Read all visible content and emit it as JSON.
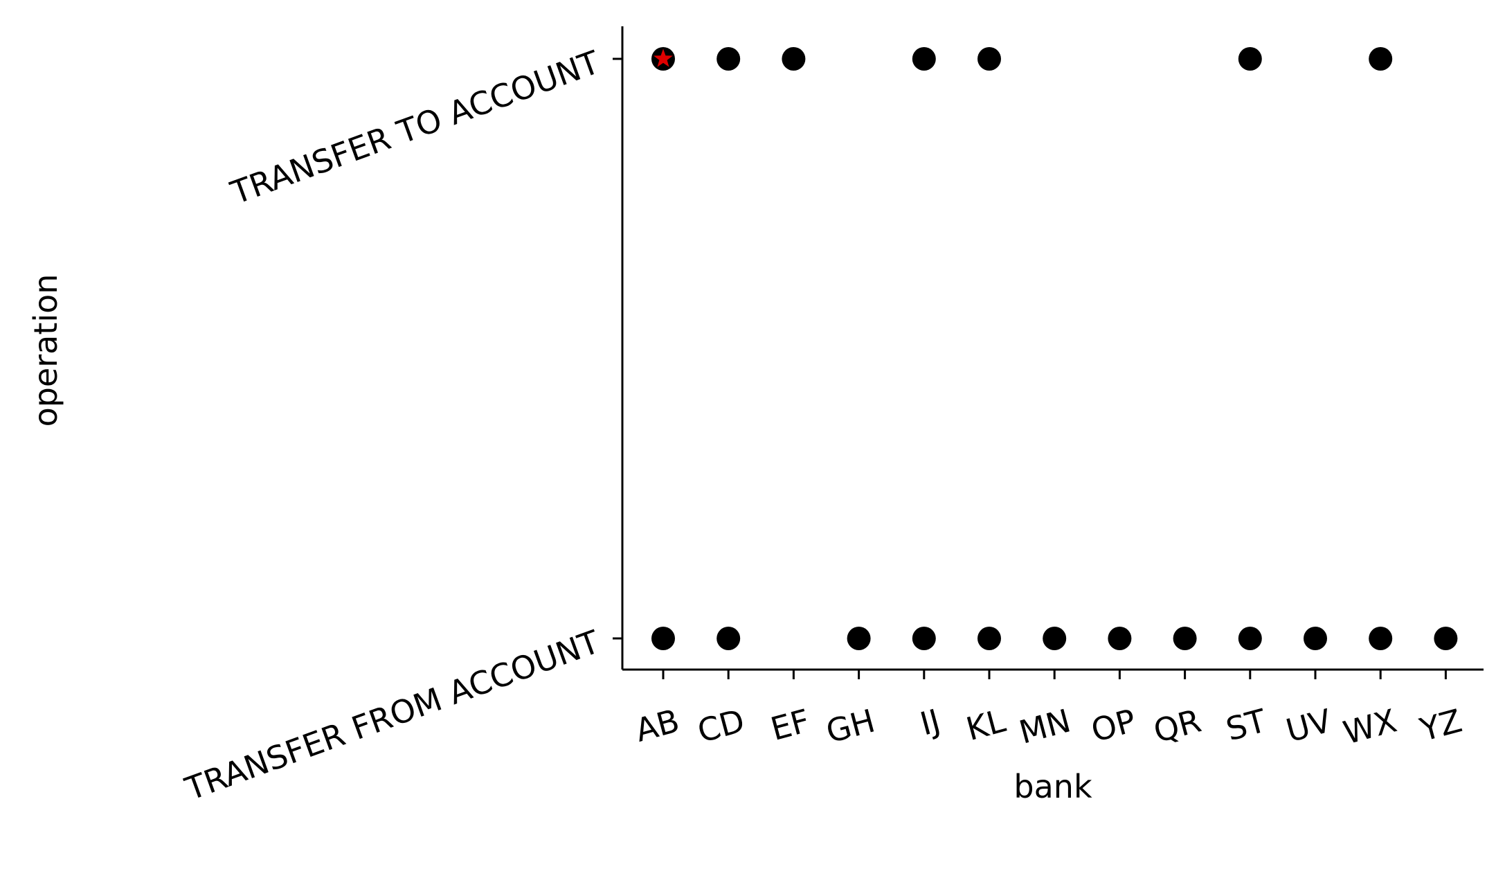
{
  "chart_data": {
    "type": "scatter",
    "xlabel": "bank",
    "ylabel": "operation",
    "categories": [
      "AB",
      "CD",
      "EF",
      "GH",
      "IJ",
      "KL",
      "MN",
      "OP",
      "QR",
      "ST",
      "UV",
      "WX",
      "YZ"
    ],
    "y_categories": [
      "TRANSFER FROM ACCOUNT",
      "TRANSFER TO ACCOUNT"
    ],
    "series": [
      {
        "marker": "circle",
        "color": "#000000",
        "points": [
          {
            "x": "AB",
            "y": "TRANSFER TO ACCOUNT"
          },
          {
            "x": "CD",
            "y": "TRANSFER TO ACCOUNT"
          },
          {
            "x": "EF",
            "y": "TRANSFER TO ACCOUNT"
          },
          {
            "x": "IJ",
            "y": "TRANSFER TO ACCOUNT"
          },
          {
            "x": "KL",
            "y": "TRANSFER TO ACCOUNT"
          },
          {
            "x": "ST",
            "y": "TRANSFER TO ACCOUNT"
          },
          {
            "x": "WX",
            "y": "TRANSFER TO ACCOUNT"
          },
          {
            "x": "AB",
            "y": "TRANSFER FROM ACCOUNT"
          },
          {
            "x": "CD",
            "y": "TRANSFER FROM ACCOUNT"
          },
          {
            "x": "GH",
            "y": "TRANSFER FROM ACCOUNT"
          },
          {
            "x": "IJ",
            "y": "TRANSFER FROM ACCOUNT"
          },
          {
            "x": "KL",
            "y": "TRANSFER FROM ACCOUNT"
          },
          {
            "x": "MN",
            "y": "TRANSFER FROM ACCOUNT"
          },
          {
            "x": "OP",
            "y": "TRANSFER FROM ACCOUNT"
          },
          {
            "x": "QR",
            "y": "TRANSFER FROM ACCOUNT"
          },
          {
            "x": "ST",
            "y": "TRANSFER FROM ACCOUNT"
          },
          {
            "x": "UV",
            "y": "TRANSFER FROM ACCOUNT"
          },
          {
            "x": "WX",
            "y": "TRANSFER FROM ACCOUNT"
          },
          {
            "x": "YZ",
            "y": "TRANSFER FROM ACCOUNT"
          }
        ]
      },
      {
        "marker": "star",
        "color": "#e00000",
        "points": [
          {
            "x": "AB",
            "y": "TRANSFER TO ACCOUNT"
          }
        ]
      }
    ],
    "grid": false,
    "legend": "none"
  }
}
